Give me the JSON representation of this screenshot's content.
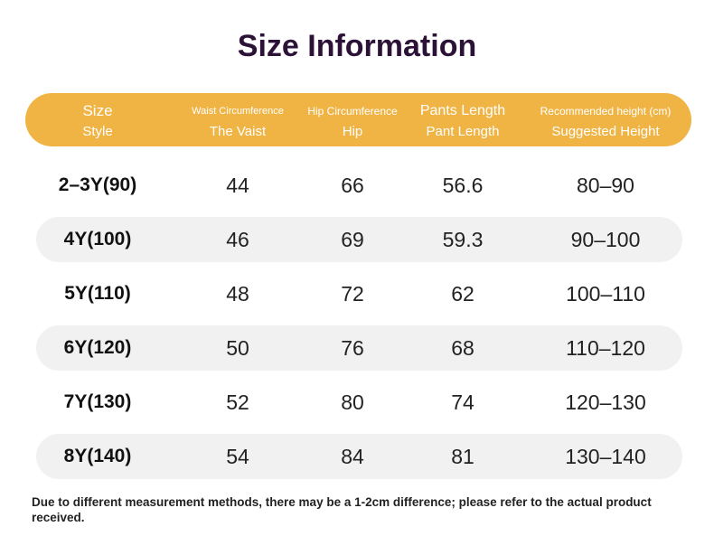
{
  "header": {
    "title": "Size Information"
  },
  "table": {
    "columns": [
      {
        "top": "Size",
        "bottom": "Style"
      },
      {
        "top": "Waist Circumference",
        "bottom": "The Vaist"
      },
      {
        "top": "Hip Circumference",
        "bottom": "Hip"
      },
      {
        "top": "Pants Length",
        "bottom": "Pant Length"
      },
      {
        "top": "Recommended height (cm)",
        "bottom": "Suggested Height"
      }
    ],
    "rows": [
      [
        "2–3Y(90)",
        "44",
        "66",
        "56.6",
        "80–90"
      ],
      [
        "4Y(100)",
        "46",
        "69",
        "59.3",
        "90–100"
      ],
      [
        "5Y(110)",
        "48",
        "72",
        "62",
        "100–110"
      ],
      [
        "6Y(120)",
        "50",
        "76",
        "68",
        "110–120"
      ],
      [
        "7Y(130)",
        "52",
        "80",
        "74",
        "120–130"
      ],
      [
        "8Y(140)",
        "54",
        "84",
        "81",
        "130–140"
      ]
    ]
  },
  "footnote": "Due to different measurement methods, there may be a 1-2cm difference; please refer to the actual product received."
}
